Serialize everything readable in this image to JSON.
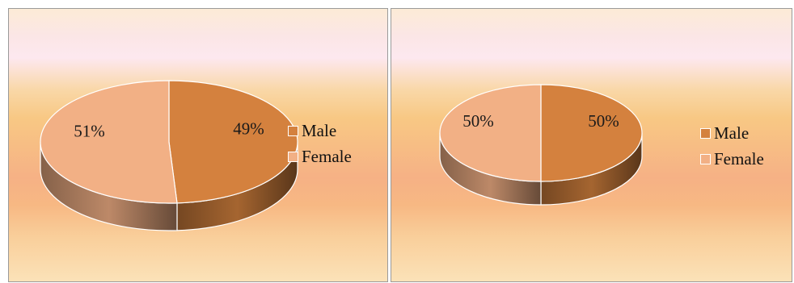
{
  "colors": {
    "male": "#d4813e",
    "female": "#f2b085"
  },
  "chart_data": [
    {
      "type": "pie",
      "categories": [
        "Male",
        "Female"
      ],
      "values": [
        49,
        51
      ],
      "data_labels": [
        "49%",
        "51%"
      ],
      "legend": {
        "position": "right",
        "entries": [
          "Male",
          "Female"
        ]
      }
    },
    {
      "type": "pie",
      "categories": [
        "Male",
        "Female"
      ],
      "values": [
        50,
        50
      ],
      "data_labels": [
        "50%",
        "50%"
      ],
      "legend": {
        "position": "right",
        "entries": [
          "Male",
          "Female"
        ]
      }
    }
  ]
}
